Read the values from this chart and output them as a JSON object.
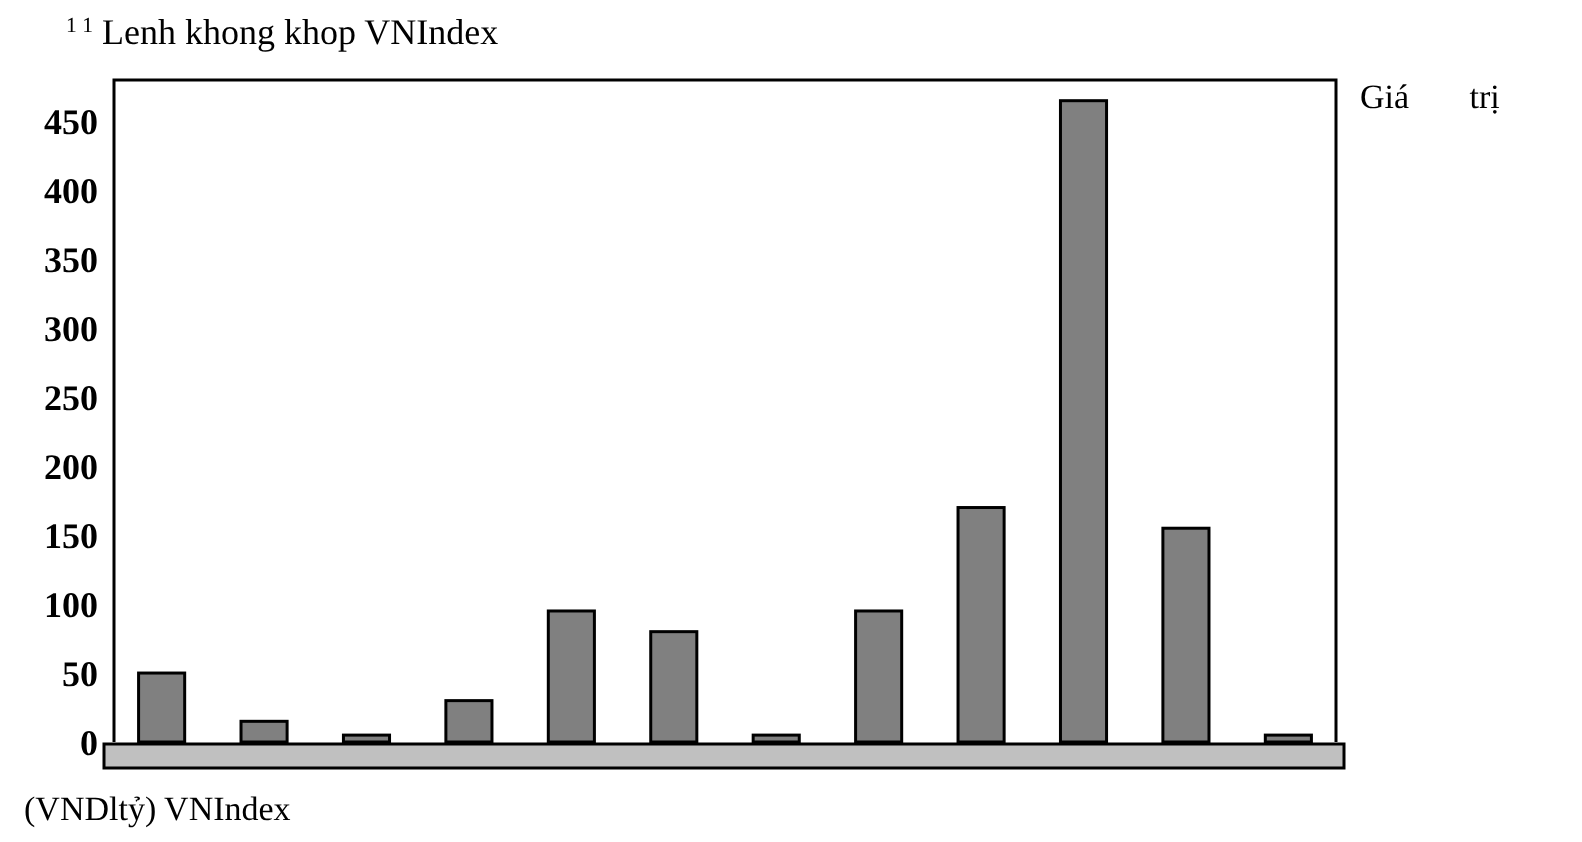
{
  "chart_data": {
    "type": "bar",
    "title": "$^{1 1}$ Lenh khong khop VNIndex",
    "ylabel": "Giá trị",
    "xlabel": "(VNDltỷ) VNIndex",
    "categories": [
      null,
      null,
      null,
      null,
      null,
      null,
      null,
      null,
      null,
      null,
      null,
      null
    ],
    "values": [
      50,
      15,
      5,
      30,
      95,
      80,
      5,
      95,
      170,
      465,
      155,
      5
    ],
    "color": "#808080",
    "ylim": [
      0,
      480
    ],
    "yticks": [
      0,
      50,
      100,
      150,
      200,
      250,
      300,
      350,
      400,
      450
    ]
  }
}
